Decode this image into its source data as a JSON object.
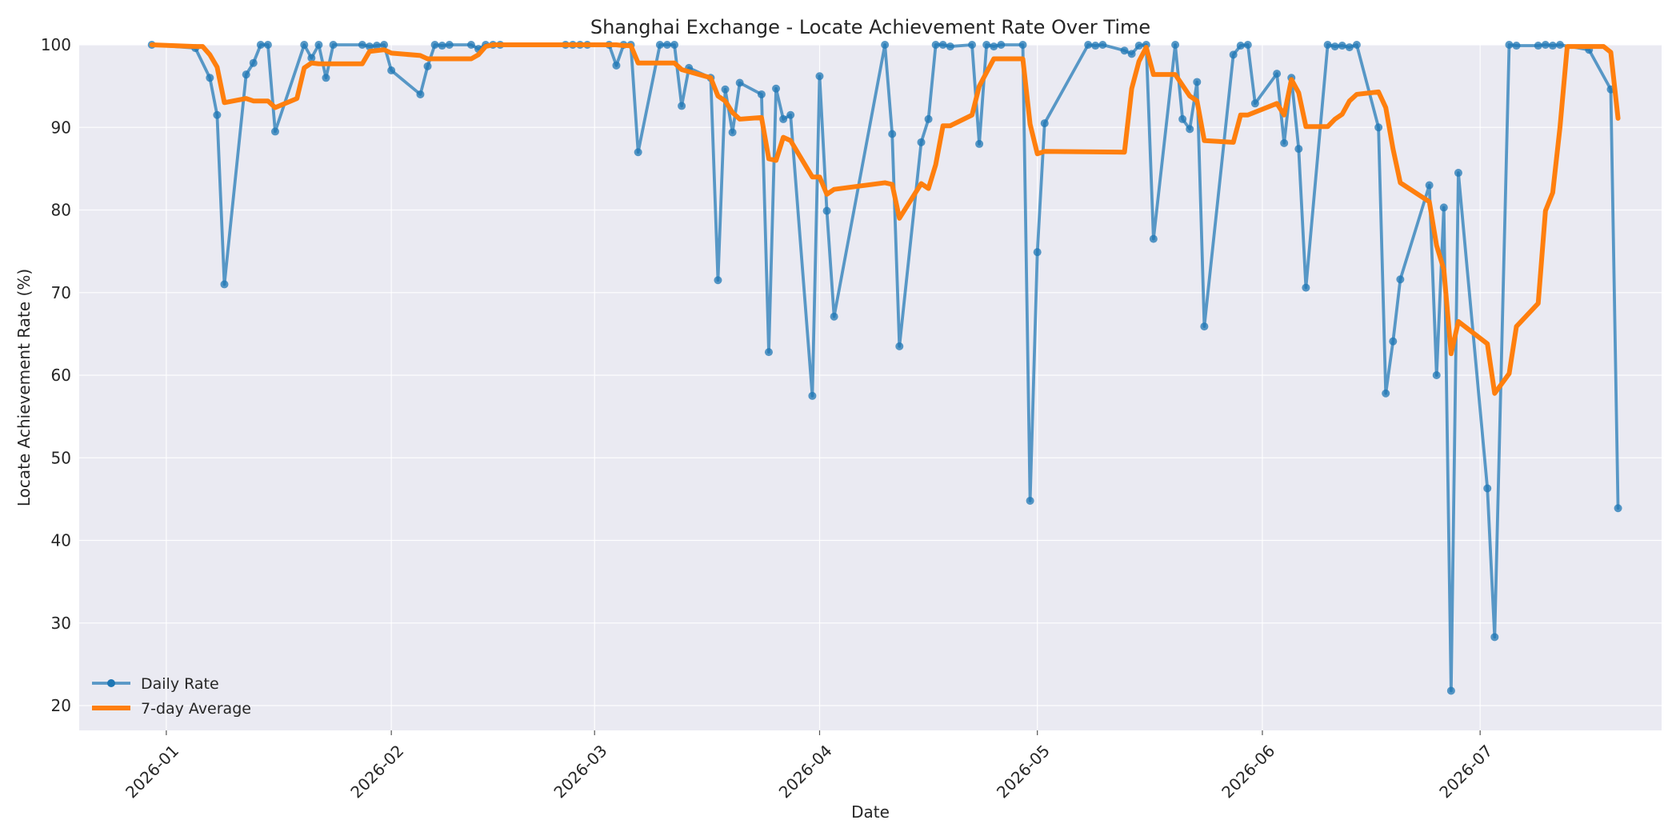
{
  "chart_data": {
    "type": "line",
    "title": "Shanghai Exchange - Locate Achievement Rate Over Time",
    "xlabel": "Date",
    "ylabel": "Locate Achievement Rate (%)",
    "xlim": [
      "2025-12-20",
      "2026-07-26"
    ],
    "ylim": [
      17,
      100
    ],
    "yticks": [
      20,
      30,
      40,
      50,
      60,
      70,
      80,
      90,
      100
    ],
    "xticks": [
      {
        "date": "2026-01-01",
        "label": "2026-01"
      },
      {
        "date": "2026-02-01",
        "label": "2026-02"
      },
      {
        "date": "2026-03-01",
        "label": "2026-03"
      },
      {
        "date": "2026-04-01",
        "label": "2026-04"
      },
      {
        "date": "2026-05-01",
        "label": "2026-05"
      },
      {
        "date": "2026-06-01",
        "label": "2026-06"
      },
      {
        "date": "2026-07-01",
        "label": "2026-07"
      }
    ],
    "grid": true,
    "legend_position": "lower-left",
    "series": [
      {
        "name": "Daily Rate",
        "color": "#1f77b4",
        "marker": "circle",
        "points": [
          [
            "2025-12-30",
            100
          ],
          [
            "2026-01-05",
            99.6
          ],
          [
            "2026-01-07",
            96
          ],
          [
            "2026-01-08",
            91.5
          ],
          [
            "2026-01-09",
            71
          ],
          [
            "2026-01-12",
            96.4
          ],
          [
            "2026-01-13",
            97.8
          ],
          [
            "2026-01-14",
            100
          ],
          [
            "2026-01-15",
            100
          ],
          [
            "2026-01-16",
            89.5
          ],
          [
            "2026-01-20",
            100
          ],
          [
            "2026-01-21",
            98.4
          ],
          [
            "2026-01-22",
            100
          ],
          [
            "2026-01-23",
            96
          ],
          [
            "2026-01-24",
            100
          ],
          [
            "2026-01-28",
            100
          ],
          [
            "2026-01-29",
            99.8
          ],
          [
            "2026-01-30",
            99.9
          ],
          [
            "2026-01-31",
            100
          ],
          [
            "2026-02-01",
            96.9
          ],
          [
            "2026-02-05",
            94
          ],
          [
            "2026-02-06",
            97.4
          ],
          [
            "2026-02-07",
            100
          ],
          [
            "2026-02-08",
            99.9
          ],
          [
            "2026-02-09",
            100
          ],
          [
            "2026-02-12",
            100
          ],
          [
            "2026-02-13",
            99.5
          ],
          [
            "2026-02-14",
            100
          ],
          [
            "2026-02-15",
            100
          ],
          [
            "2026-02-16",
            100
          ],
          [
            "2026-02-25",
            100
          ],
          [
            "2026-02-26",
            100
          ],
          [
            "2026-02-27",
            100
          ],
          [
            "2026-02-28",
            100
          ],
          [
            "2026-03-03",
            100
          ],
          [
            "2026-03-04",
            97.5
          ],
          [
            "2026-03-05",
            100
          ],
          [
            "2026-03-06",
            100
          ],
          [
            "2026-03-07",
            87
          ],
          [
            "2026-03-10",
            100
          ],
          [
            "2026-03-11",
            100
          ],
          [
            "2026-03-12",
            100
          ],
          [
            "2026-03-13",
            92.6
          ],
          [
            "2026-03-14",
            97.2
          ],
          [
            "2026-03-17",
            96
          ],
          [
            "2026-03-18",
            71.5
          ],
          [
            "2026-03-19",
            94.6
          ],
          [
            "2026-03-20",
            89.4
          ],
          [
            "2026-03-21",
            95.4
          ],
          [
            "2026-03-24",
            94
          ],
          [
            "2026-03-25",
            62.8
          ],
          [
            "2026-03-26",
            94.7
          ],
          [
            "2026-03-27",
            91
          ],
          [
            "2026-03-28",
            91.5
          ],
          [
            "2026-03-31",
            57.5
          ],
          [
            "2026-04-01",
            96.2
          ],
          [
            "2026-04-02",
            79.9
          ],
          [
            "2026-04-03",
            67.1
          ],
          [
            "2026-04-10",
            100
          ],
          [
            "2026-04-11",
            89.2
          ],
          [
            "2026-04-12",
            63.5
          ],
          [
            "2026-04-15",
            88.2
          ],
          [
            "2026-04-16",
            91
          ],
          [
            "2026-04-17",
            100
          ],
          [
            "2026-04-18",
            100
          ],
          [
            "2026-04-19",
            99.8
          ],
          [
            "2026-04-22",
            100
          ],
          [
            "2026-04-23",
            88
          ],
          [
            "2026-04-24",
            100
          ],
          [
            "2026-04-25",
            99.8
          ],
          [
            "2026-04-26",
            100
          ],
          [
            "2026-04-29",
            100
          ],
          [
            "2026-04-30",
            44.8
          ],
          [
            "2026-05-01",
            74.9
          ],
          [
            "2026-05-02",
            90.5
          ],
          [
            "2026-05-08",
            100
          ],
          [
            "2026-05-09",
            99.9
          ],
          [
            "2026-05-10",
            100
          ],
          [
            "2026-05-13",
            99.3
          ],
          [
            "2026-05-14",
            98.9
          ],
          [
            "2026-05-15",
            99.9
          ],
          [
            "2026-05-16",
            100
          ],
          [
            "2026-05-17",
            76.5
          ],
          [
            "2026-05-20",
            100
          ],
          [
            "2026-05-21",
            91
          ],
          [
            "2026-05-22",
            89.8
          ],
          [
            "2026-05-23",
            95.5
          ],
          [
            "2026-05-24",
            65.9
          ],
          [
            "2026-05-28",
            98.8
          ],
          [
            "2026-05-29",
            99.9
          ],
          [
            "2026-05-30",
            100
          ],
          [
            "2026-05-31",
            92.9
          ],
          [
            "2026-06-03",
            96.5
          ],
          [
            "2026-06-04",
            88.1
          ],
          [
            "2026-06-05",
            96
          ],
          [
            "2026-06-06",
            87.4
          ],
          [
            "2026-06-07",
            70.6
          ],
          [
            "2026-06-10",
            100
          ],
          [
            "2026-06-11",
            99.8
          ],
          [
            "2026-06-12",
            99.9
          ],
          [
            "2026-06-13",
            99.7
          ],
          [
            "2026-06-14",
            100
          ],
          [
            "2026-06-17",
            90
          ],
          [
            "2026-06-18",
            57.8
          ],
          [
            "2026-06-19",
            64.1
          ],
          [
            "2026-06-20",
            71.6
          ],
          [
            "2026-06-24",
            83
          ],
          [
            "2026-06-25",
            60
          ],
          [
            "2026-06-26",
            80.3
          ],
          [
            "2026-06-27",
            21.8
          ],
          [
            "2026-06-28",
            84.5
          ],
          [
            "2026-07-02",
            46.3
          ],
          [
            "2026-07-03",
            28.3
          ],
          [
            "2026-07-05",
            100
          ],
          [
            "2026-07-06",
            99.9
          ],
          [
            "2026-07-09",
            99.9
          ],
          [
            "2026-07-10",
            100
          ],
          [
            "2026-07-11",
            99.9
          ],
          [
            "2026-07-12",
            100
          ],
          [
            "2026-07-16",
            99.4
          ],
          [
            "2026-07-19",
            94.6
          ],
          [
            "2026-07-20",
            43.9
          ]
        ]
      },
      {
        "name": "7-day Average",
        "color": "#ff7f0e",
        "marker": "none",
        "points": [
          [
            "2025-12-30",
            100
          ],
          [
            "2026-01-05",
            99.8
          ],
          [
            "2026-01-06",
            99.8
          ],
          [
            "2026-01-07",
            98.8
          ],
          [
            "2026-01-08",
            97.3
          ],
          [
            "2026-01-09",
            93
          ],
          [
            "2026-01-12",
            93.5
          ],
          [
            "2026-01-13",
            93.2
          ],
          [
            "2026-01-14",
            93.2
          ],
          [
            "2026-01-15",
            93.2
          ],
          [
            "2026-01-16",
            92.4
          ],
          [
            "2026-01-19",
            93.5
          ],
          [
            "2026-01-20",
            97.2
          ],
          [
            "2026-01-21",
            97.8
          ],
          [
            "2026-01-22",
            97.7
          ],
          [
            "2026-01-28",
            97.7
          ],
          [
            "2026-01-29",
            99.2
          ],
          [
            "2026-01-31",
            99.4
          ],
          [
            "2026-02-01",
            99
          ],
          [
            "2026-02-05",
            98.7
          ],
          [
            "2026-02-06",
            98.3
          ],
          [
            "2026-02-12",
            98.3
          ],
          [
            "2026-02-13",
            98.8
          ],
          [
            "2026-02-14",
            99.8
          ],
          [
            "2026-02-15",
            100
          ],
          [
            "2026-03-04",
            100
          ],
          [
            "2026-03-05",
            99.9
          ],
          [
            "2026-03-06",
            99.9
          ],
          [
            "2026-03-07",
            97.8
          ],
          [
            "2026-03-12",
            97.8
          ],
          [
            "2026-03-13",
            97
          ],
          [
            "2026-03-17",
            96
          ],
          [
            "2026-03-18",
            93.8
          ],
          [
            "2026-03-19",
            93.2
          ],
          [
            "2026-03-20",
            91.8
          ],
          [
            "2026-03-21",
            91
          ],
          [
            "2026-03-24",
            91.2
          ],
          [
            "2026-03-25",
            86.2
          ],
          [
            "2026-03-26",
            86
          ],
          [
            "2026-03-27",
            88.8
          ],
          [
            "2026-03-28",
            88.4
          ],
          [
            "2026-03-31",
            84
          ],
          [
            "2026-04-01",
            84
          ],
          [
            "2026-04-02",
            81.9
          ],
          [
            "2026-04-03",
            82.5
          ],
          [
            "2026-04-10",
            83.3
          ],
          [
            "2026-04-11",
            83.1
          ],
          [
            "2026-04-12",
            79
          ],
          [
            "2026-04-15",
            83.2
          ],
          [
            "2026-04-16",
            82.6
          ],
          [
            "2026-04-17",
            85.5
          ],
          [
            "2026-04-18",
            90.2
          ],
          [
            "2026-04-19",
            90.2
          ],
          [
            "2026-04-22",
            91.5
          ],
          [
            "2026-04-23",
            95
          ],
          [
            "2026-04-25",
            98.3
          ],
          [
            "2026-04-29",
            98.3
          ],
          [
            "2026-04-30",
            90.4
          ],
          [
            "2026-05-01",
            86.8
          ],
          [
            "2026-05-02",
            87.1
          ],
          [
            "2026-05-13",
            87
          ],
          [
            "2026-05-14",
            94.7
          ],
          [
            "2026-05-15",
            98
          ],
          [
            "2026-05-16",
            99.7
          ],
          [
            "2026-05-17",
            96.4
          ],
          [
            "2026-05-20",
            96.4
          ],
          [
            "2026-05-22",
            93.8
          ],
          [
            "2026-05-23",
            93.2
          ],
          [
            "2026-05-24",
            88.4
          ],
          [
            "2026-05-28",
            88.2
          ],
          [
            "2026-05-29",
            91.5
          ],
          [
            "2026-05-30",
            91.5
          ],
          [
            "2026-06-03",
            92.9
          ],
          [
            "2026-06-04",
            91.5
          ],
          [
            "2026-06-05",
            95.8
          ],
          [
            "2026-06-06",
            94.2
          ],
          [
            "2026-06-07",
            90.1
          ],
          [
            "2026-06-10",
            90.1
          ],
          [
            "2026-06-11",
            91
          ],
          [
            "2026-06-12",
            91.6
          ],
          [
            "2026-06-13",
            93.2
          ],
          [
            "2026-06-14",
            94
          ],
          [
            "2026-06-17",
            94.3
          ],
          [
            "2026-06-18",
            92.4
          ],
          [
            "2026-06-19",
            87.4
          ],
          [
            "2026-06-20",
            83.3
          ],
          [
            "2026-06-24",
            81
          ],
          [
            "2026-06-25",
            75.7
          ],
          [
            "2026-06-26",
            72.8
          ],
          [
            "2026-06-27",
            62.6
          ],
          [
            "2026-06-28",
            66.5
          ],
          [
            "2026-07-02",
            63.8
          ],
          [
            "2026-07-03",
            57.8
          ],
          [
            "2026-07-05",
            60.2
          ],
          [
            "2026-07-06",
            65.9
          ],
          [
            "2026-07-09",
            68.7
          ],
          [
            "2026-07-10",
            79.9
          ],
          [
            "2026-07-11",
            82.1
          ],
          [
            "2026-07-12",
            90
          ],
          [
            "2026-07-13",
            99.8
          ],
          [
            "2026-07-18",
            99.8
          ],
          [
            "2026-07-19",
            99.1
          ],
          [
            "2026-07-20",
            91.1
          ]
        ]
      }
    ]
  }
}
